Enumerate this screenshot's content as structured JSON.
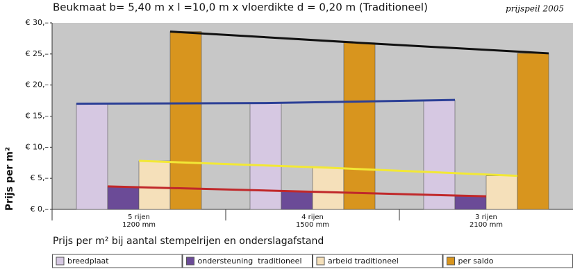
{
  "chart_data": {
    "type": "bar",
    "title": "Beukmaat b= 5,40 m x l =10,0 m x vloerdikte d = 0,20 m   (Traditioneel)",
    "subtitle": "prijspeil 2005",
    "y_label": "Prijs per m²",
    "x_label": "Prijs per m² bij aantal stempelrijen en onderslagafstand",
    "categories": [
      [
        "5 rijen",
        "1200 mm"
      ],
      [
        "4 rijen",
        "1500 mm"
      ],
      [
        "3 rijen",
        "2100 mm"
      ]
    ],
    "series": [
      {
        "name": "breedplaat",
        "color": "#d6c8e2",
        "trend_color": "#2b3f96",
        "values": [
          17.0,
          17.1,
          17.6
        ]
      },
      {
        "name": "ondersteuning  traditioneel",
        "color": "#6b4b97",
        "trend_color": "#c0282a",
        "values": [
          3.7,
          2.9,
          2.1
        ]
      },
      {
        "name": "arbeid traditioneel",
        "color": "#f5e0ba",
        "trend_color": "#f2e836",
        "values": [
          7.8,
          6.7,
          5.4
        ]
      },
      {
        "name": "per saldo",
        "color": "#d8951e",
        "trend_color": "#111111",
        "values": [
          28.6,
          26.8,
          25.1
        ]
      }
    ],
    "ylim": [
      0,
      30
    ],
    "yticks": [
      {
        "value": 0,
        "label": "€ 0,–"
      },
      {
        "value": 5,
        "label": "€ 5,–"
      },
      {
        "value": 10,
        "label": "€ 10,–"
      },
      {
        "value": 15,
        "label": "€ 15,–"
      },
      {
        "value": 20,
        "label": "€ 20,–"
      },
      {
        "value": 25,
        "label": "€ 25,–"
      },
      {
        "value": 30,
        "label": "€ 30,–"
      }
    ],
    "grid": false,
    "background": "#c7c7c7"
  }
}
